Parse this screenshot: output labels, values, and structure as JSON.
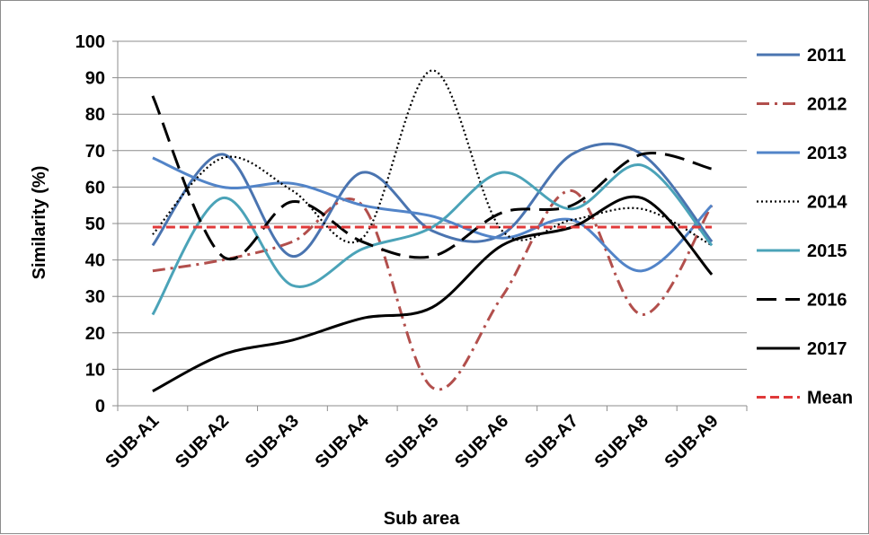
{
  "chart_data": {
    "type": "line",
    "title": "",
    "xlabel": "Sub area",
    "ylabel": "Similarity (%)",
    "ylim": [
      0,
      100
    ],
    "yticks": [
      "0",
      "10",
      "20",
      "30",
      "40",
      "50",
      "60",
      "70",
      "80",
      "90",
      "100"
    ],
    "categories": [
      "SUB-A1",
      "SUB-A2",
      "SUB-A3",
      "SUB-A4",
      "SUB-A5",
      "SUB-A6",
      "SUB-A7",
      "SUB-A8",
      "SUB-A9"
    ],
    "grid": "horizontal",
    "legend_position": "right",
    "series": [
      {
        "name": "2011",
        "color": "#4a74b0",
        "dash": "solid",
        "values": [
          44,
          69,
          41,
          64,
          48,
          47,
          69,
          69,
          45
        ]
      },
      {
        "name": "2012",
        "color": "#b24f4c",
        "dash": "dashdot",
        "values": [
          37,
          40,
          45,
          55,
          5,
          30,
          59,
          25,
          55
        ]
      },
      {
        "name": "2013",
        "color": "#5284c8",
        "dash": "solid",
        "values": [
          68,
          60,
          61,
          55,
          52,
          46,
          51,
          37,
          55
        ]
      },
      {
        "name": "2014",
        "color": "#000000",
        "dash": "dotted",
        "values": [
          47,
          68,
          59,
          46,
          92,
          48,
          51,
          54,
          44
        ]
      },
      {
        "name": "2015",
        "color": "#4ba3b8",
        "dash": "solid",
        "values": [
          25,
          57,
          33,
          43,
          49,
          64,
          54,
          66,
          44
        ]
      },
      {
        "name": "2016",
        "color": "#000000",
        "dash": "longdash",
        "values": [
          85,
          41,
          56,
          45,
          41,
          53,
          55,
          69,
          65
        ]
      },
      {
        "name": "2017",
        "color": "#000000",
        "dash": "solid",
        "values": [
          4,
          14,
          18,
          24,
          27,
          44,
          49,
          57,
          36
        ]
      },
      {
        "name": "Mean",
        "color": "#e03a3a",
        "dash": "dashed",
        "values": [
          49,
          49,
          49,
          49,
          49,
          49,
          49,
          49,
          49
        ]
      }
    ]
  }
}
